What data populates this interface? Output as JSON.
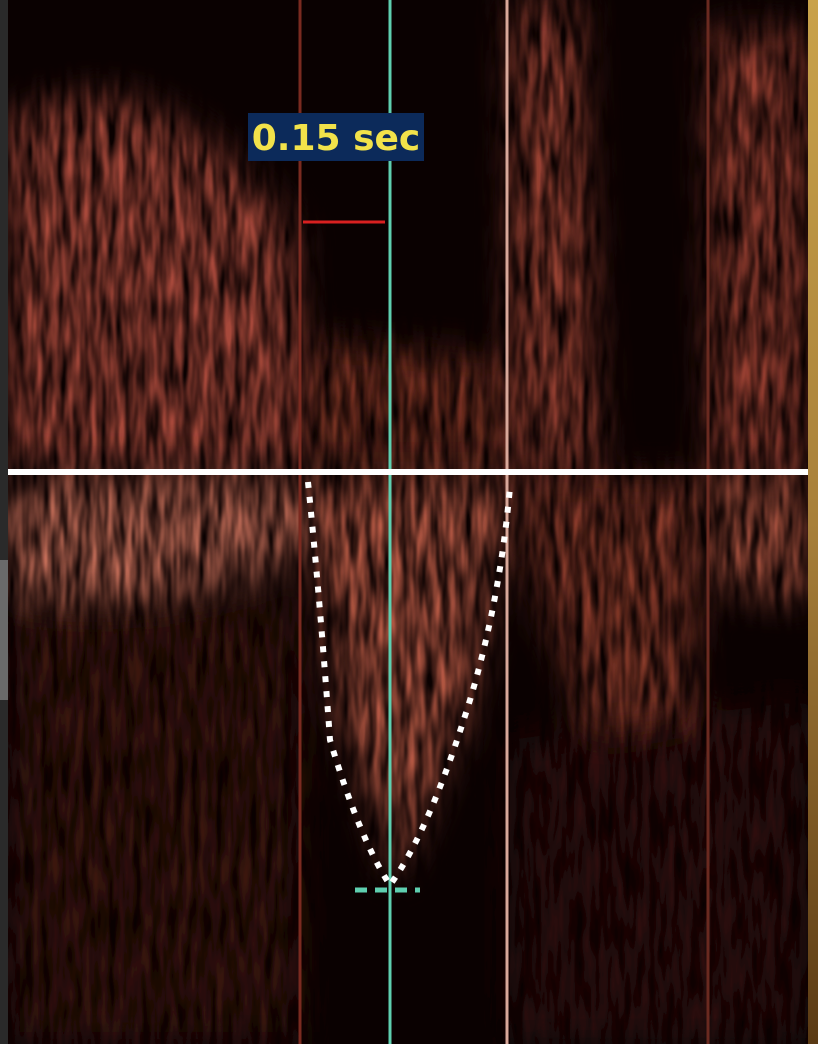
{
  "label": "0.15 sec"
}
